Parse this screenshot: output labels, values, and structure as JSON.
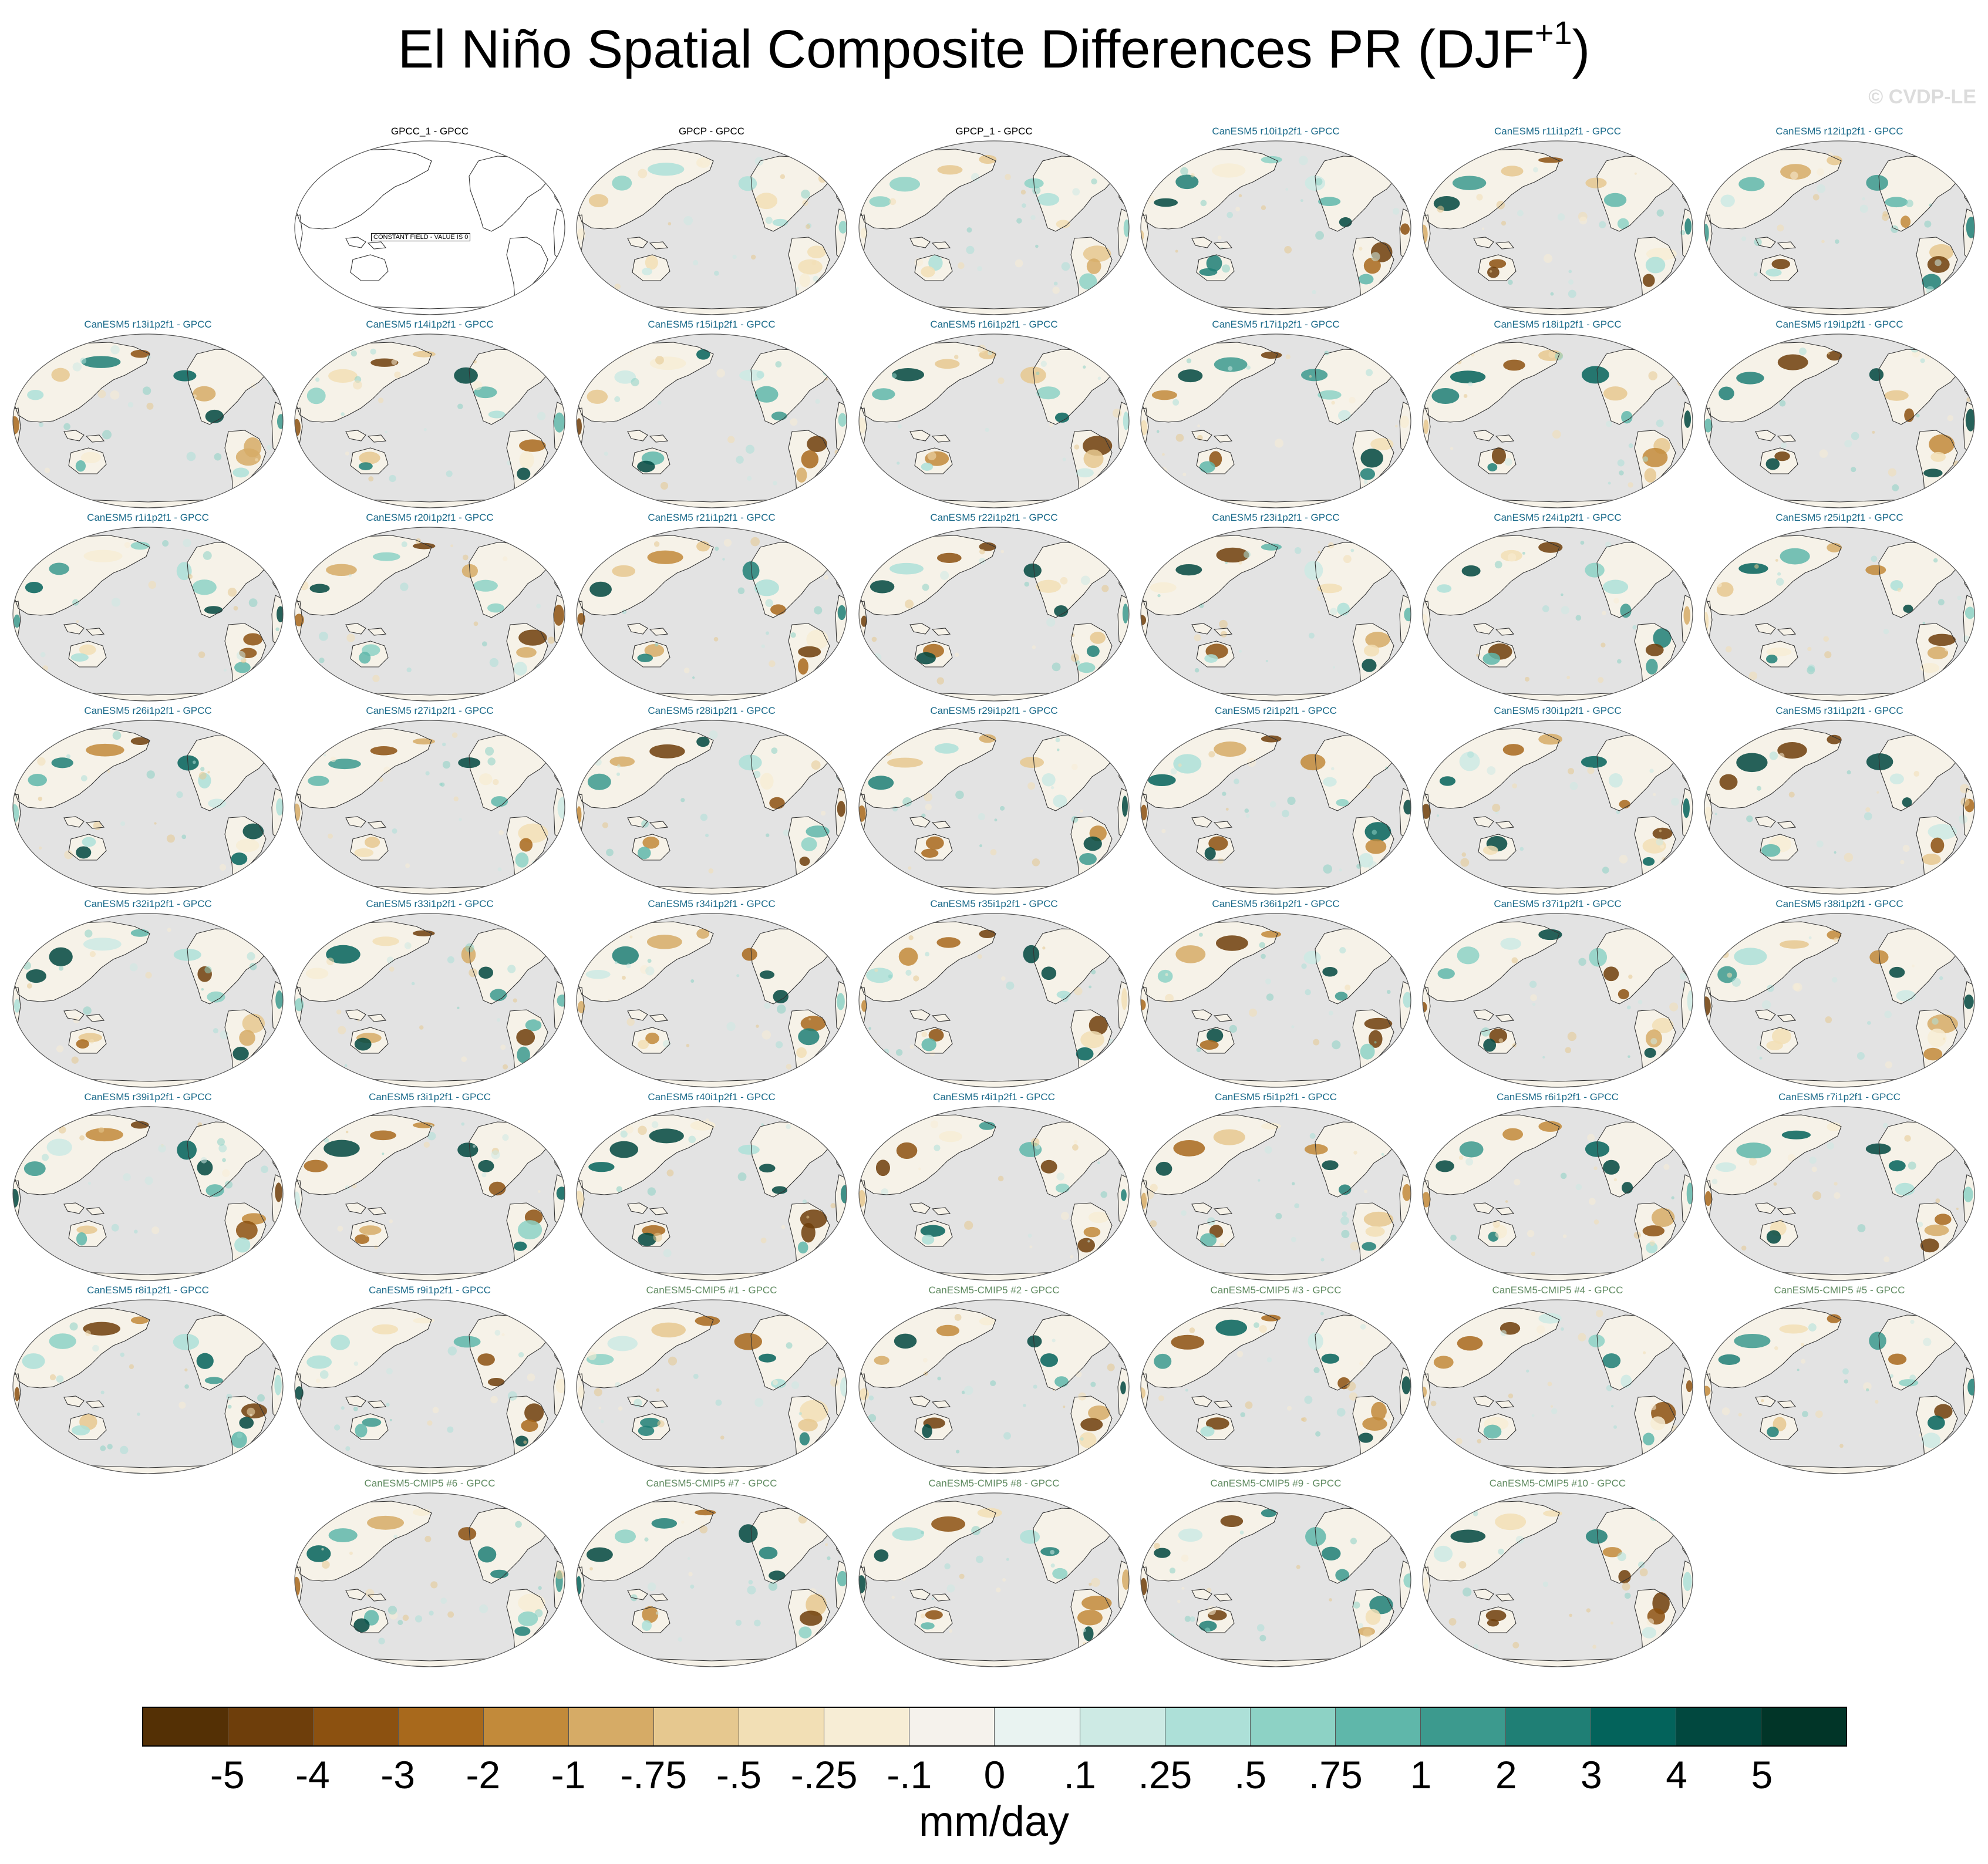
{
  "title": {
    "main": "El Niño Spatial Composite Differences PR (DJF",
    "superscript": "+1",
    "close": ")"
  },
  "watermark": "© CVDP-LE",
  "colors": {
    "land": "#e3e3e3",
    "ocean": "#ffffff",
    "coast": "#333333",
    "title_observation": "#000000",
    "title_canesm5": "#1a6a8a",
    "title_cmip5": "#5f8a60"
  },
  "panels": [
    {
      "title": "GPCC_1 - GPCC",
      "kind": "observation",
      "constant": true,
      "note": "CONSTANT FIELD - VALUE IS 0"
    },
    {
      "title": "GPCP - GPCC",
      "kind": "observation"
    },
    {
      "title": "GPCP_1 - GPCC",
      "kind": "observation"
    },
    {
      "title": "CanESM5 r10i1p2f1 - GPCC",
      "kind": "canesm5"
    },
    {
      "title": "CanESM5 r11i1p2f1 - GPCC",
      "kind": "canesm5"
    },
    {
      "title": "CanESM5 r12i1p2f1 - GPCC",
      "kind": "canesm5"
    },
    {
      "title": "CanESM5 r13i1p2f1 - GPCC",
      "kind": "canesm5"
    },
    {
      "title": "CanESM5 r14i1p2f1 - GPCC",
      "kind": "canesm5"
    },
    {
      "title": "CanESM5 r15i1p2f1 - GPCC",
      "kind": "canesm5"
    },
    {
      "title": "CanESM5 r16i1p2f1 - GPCC",
      "kind": "canesm5"
    },
    {
      "title": "CanESM5 r17i1p2f1 - GPCC",
      "kind": "canesm5"
    },
    {
      "title": "CanESM5 r18i1p2f1 - GPCC",
      "kind": "canesm5"
    },
    {
      "title": "CanESM5 r19i1p2f1 - GPCC",
      "kind": "canesm5"
    },
    {
      "title": "CanESM5 r1i1p2f1 - GPCC",
      "kind": "canesm5"
    },
    {
      "title": "CanESM5 r20i1p2f1 - GPCC",
      "kind": "canesm5"
    },
    {
      "title": "CanESM5 r21i1p2f1 - GPCC",
      "kind": "canesm5"
    },
    {
      "title": "CanESM5 r22i1p2f1 - GPCC",
      "kind": "canesm5"
    },
    {
      "title": "CanESM5 r23i1p2f1 - GPCC",
      "kind": "canesm5"
    },
    {
      "title": "CanESM5 r24i1p2f1 - GPCC",
      "kind": "canesm5"
    },
    {
      "title": "CanESM5 r25i1p2f1 - GPCC",
      "kind": "canesm5"
    },
    {
      "title": "CanESM5 r26i1p2f1 - GPCC",
      "kind": "canesm5"
    },
    {
      "title": "CanESM5 r27i1p2f1 - GPCC",
      "kind": "canesm5"
    },
    {
      "title": "CanESM5 r28i1p2f1 - GPCC",
      "kind": "canesm5"
    },
    {
      "title": "CanESM5 r29i1p2f1 - GPCC",
      "kind": "canesm5"
    },
    {
      "title": "CanESM5 r2i1p2f1 - GPCC",
      "kind": "canesm5"
    },
    {
      "title": "CanESM5 r30i1p2f1 - GPCC",
      "kind": "canesm5"
    },
    {
      "title": "CanESM5 r31i1p2f1 - GPCC",
      "kind": "canesm5"
    },
    {
      "title": "CanESM5 r32i1p2f1 - GPCC",
      "kind": "canesm5"
    },
    {
      "title": "CanESM5 r33i1p2f1 - GPCC",
      "kind": "canesm5"
    },
    {
      "title": "CanESM5 r34i1p2f1 - GPCC",
      "kind": "canesm5"
    },
    {
      "title": "CanESM5 r35i1p2f1 - GPCC",
      "kind": "canesm5"
    },
    {
      "title": "CanESM5 r36i1p2f1 - GPCC",
      "kind": "canesm5"
    },
    {
      "title": "CanESM5 r37i1p2f1 - GPCC",
      "kind": "canesm5"
    },
    {
      "title": "CanESM5 r38i1p2f1 - GPCC",
      "kind": "canesm5"
    },
    {
      "title": "CanESM5 r39i1p2f1 - GPCC",
      "kind": "canesm5"
    },
    {
      "title": "CanESM5 r3i1p2f1 - GPCC",
      "kind": "canesm5"
    },
    {
      "title": "CanESM5 r40i1p2f1 - GPCC",
      "kind": "canesm5"
    },
    {
      "title": "CanESM5 r4i1p2f1 - GPCC",
      "kind": "canesm5"
    },
    {
      "title": "CanESM5 r5i1p2f1 - GPCC",
      "kind": "canesm5"
    },
    {
      "title": "CanESM5 r6i1p2f1 - GPCC",
      "kind": "canesm5"
    },
    {
      "title": "CanESM5 r7i1p2f1 - GPCC",
      "kind": "canesm5"
    },
    {
      "title": "CanESM5 r8i1p2f1 - GPCC",
      "kind": "canesm5"
    },
    {
      "title": "CanESM5 r9i1p2f1 - GPCC",
      "kind": "canesm5"
    },
    {
      "title": "CanESM5-CMIP5 #1 - GPCC",
      "kind": "cmip5"
    },
    {
      "title": "CanESM5-CMIP5 #2 - GPCC",
      "kind": "cmip5"
    },
    {
      "title": "CanESM5-CMIP5 #3 - GPCC",
      "kind": "cmip5"
    },
    {
      "title": "CanESM5-CMIP5 #4 - GPCC",
      "kind": "cmip5"
    },
    {
      "title": "CanESM5-CMIP5 #5 - GPCC",
      "kind": "cmip5"
    },
    {
      "title": "CanESM5-CMIP5 #6 - GPCC",
      "kind": "cmip5"
    },
    {
      "title": "CanESM5-CMIP5 #7 - GPCC",
      "kind": "cmip5"
    },
    {
      "title": "CanESM5-CMIP5 #8 - GPCC",
      "kind": "cmip5"
    },
    {
      "title": "CanESM5-CMIP5 #9 - GPCC",
      "kind": "cmip5"
    },
    {
      "title": "CanESM5-CMIP5 #10 - GPCC",
      "kind": "cmip5"
    }
  ],
  "colorbar": {
    "colors": [
      "#543005",
      "#6e3e0b",
      "#8c5110",
      "#a8691c",
      "#c28a3a",
      "#d6ab66",
      "#e6c88f",
      "#f2dfb5",
      "#f7edd5",
      "#f5f2ec",
      "#e9f3f1",
      "#cdeae4",
      "#ade0d8",
      "#8dd2c5",
      "#5fb7aa",
      "#3c9a8e",
      "#1f7f75",
      "#03635b",
      "#01483f",
      "#013528"
    ],
    "ticks": [
      "-5",
      "-4",
      "-3",
      "-2",
      "-1",
      "-.75",
      "-.5",
      "-.25",
      "-.1",
      "0",
      ".1",
      ".25",
      ".5",
      ".75",
      "1",
      "2",
      "3",
      "4",
      "5"
    ],
    "unit": "mm/day"
  }
}
